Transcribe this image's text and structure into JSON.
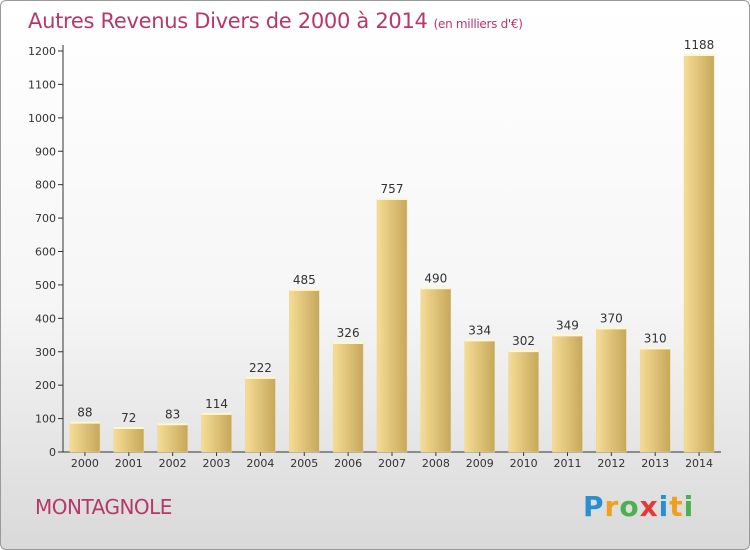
{
  "chart": {
    "title": "Autres Revenus Divers de 2000 à 2014",
    "subtitle": "(en milliers d'€)",
    "city": "MONTAGNOLE",
    "logo": "Proxiti"
  },
  "chart_data": {
    "type": "bar",
    "categories": [
      "2000",
      "2001",
      "2002",
      "2003",
      "2004",
      "2005",
      "2006",
      "2007",
      "2008",
      "2009",
      "2010",
      "2011",
      "2012",
      "2013",
      "2014"
    ],
    "values": [
      88,
      72,
      83,
      114,
      222,
      485,
      326,
      757,
      490,
      334,
      302,
      349,
      370,
      310,
      1188
    ],
    "ylim": [
      0,
      1200
    ],
    "yticks": [
      0,
      100,
      200,
      300,
      400,
      500,
      600,
      700,
      800,
      900,
      1000,
      1100,
      1200
    ],
    "grid": false,
    "legend": "none",
    "colors": {
      "bar_light": "#f6dc96",
      "bar_dark": "#c6a85a",
      "axis": "#333333"
    }
  }
}
